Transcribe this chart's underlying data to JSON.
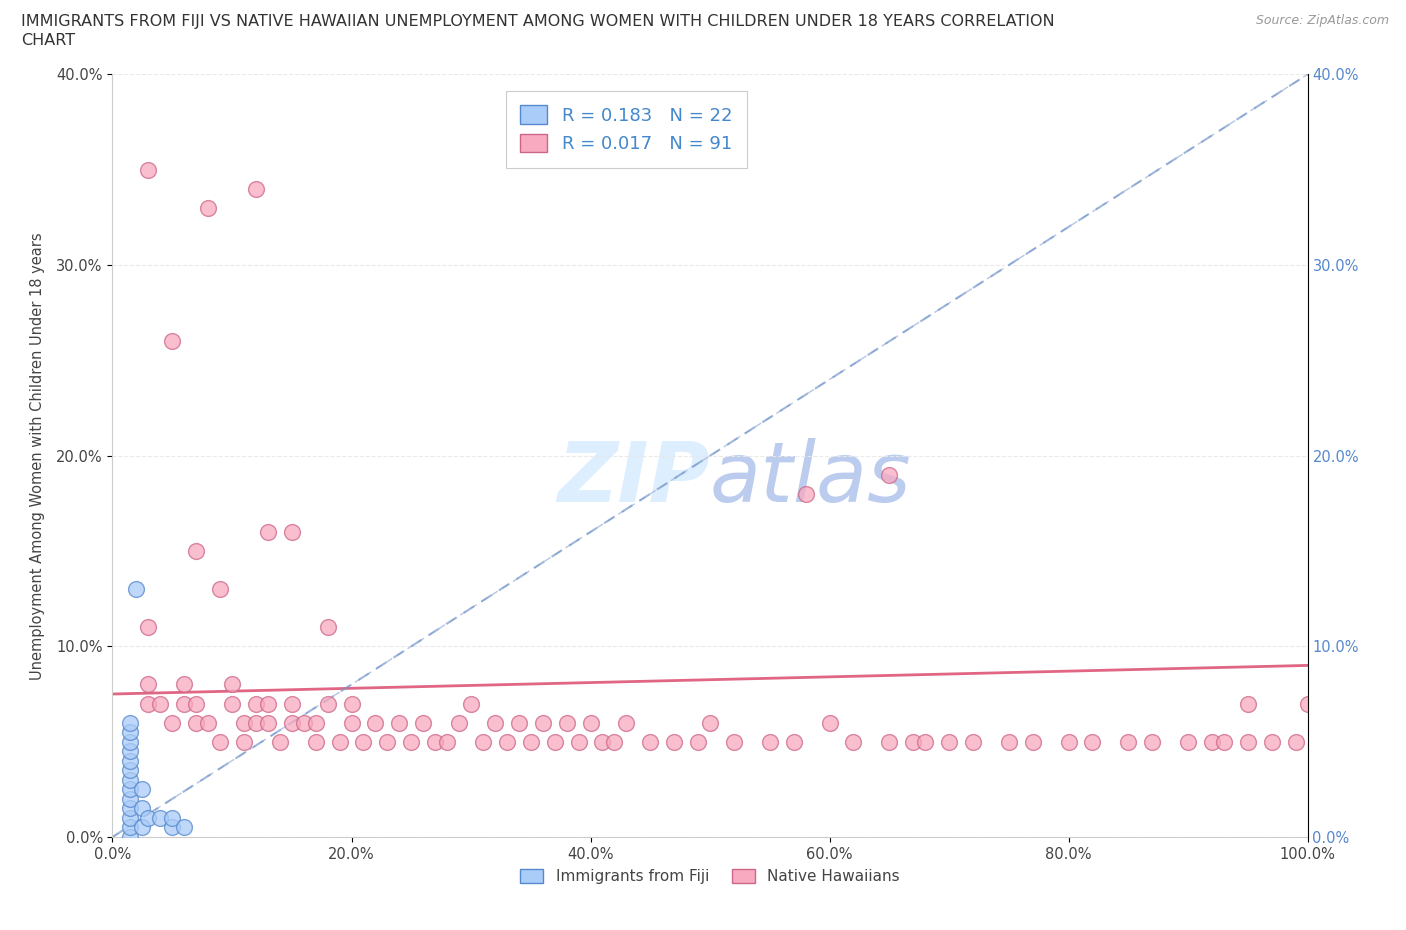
{
  "title_line1": "IMMIGRANTS FROM FIJI VS NATIVE HAWAIIAN UNEMPLOYMENT AMONG WOMEN WITH CHILDREN UNDER 18 YEARS CORRELATION",
  "title_line2": "CHART",
  "source": "Source: ZipAtlas.com",
  "ylabel_label": "Unemployment Among Women with Children Under 18 years",
  "fiji_R": 0.183,
  "fiji_N": 22,
  "native_R": 0.017,
  "native_N": 91,
  "fiji_color": "#aaccf8",
  "native_color": "#f8aac0",
  "fiji_edge_color": "#5588cc",
  "native_edge_color": "#cc6688",
  "trend_fiji_color": "#7799cc",
  "trend_native_color": "#dd5577",
  "diagonal_color": "#aabbdd",
  "watermark_color": "#ddeeff",
  "legend_fiji_label": "Immigrants from Fiji",
  "legend_native_label": "Native Hawaiians",
  "fiji_x": [
    1.5,
    1.5,
    1.5,
    1.5,
    1.5,
    1.5,
    1.5,
    1.5,
    1.5,
    1.5,
    1.5,
    1.5,
    1.5,
    2.5,
    2.5,
    2.5,
    3.0,
    4.0,
    5.0,
    5.0,
    6.0,
    2.0
  ],
  "fiji_y": [
    0.0,
    0.5,
    1.0,
    1.5,
    2.0,
    2.5,
    3.0,
    3.5,
    4.0,
    4.5,
    5.0,
    5.5,
    6.0,
    0.5,
    1.5,
    2.5,
    1.0,
    1.0,
    0.5,
    1.0,
    0.5,
    13.0
  ],
  "native_x": [
    3,
    3,
    4,
    5,
    6,
    6,
    7,
    7,
    8,
    9,
    10,
    10,
    11,
    11,
    12,
    12,
    13,
    13,
    14,
    15,
    15,
    16,
    17,
    17,
    18,
    19,
    20,
    20,
    21,
    22,
    23,
    24,
    25,
    26,
    27,
    28,
    29,
    30,
    31,
    32,
    33,
    34,
    35,
    36,
    37,
    38,
    39,
    40,
    41,
    42,
    43,
    45,
    47,
    49,
    50,
    52,
    55,
    57,
    60,
    62,
    65,
    67,
    68,
    70,
    72,
    75,
    77,
    80,
    82,
    85,
    87,
    90,
    92,
    93,
    95,
    97,
    99,
    100,
    3,
    12,
    5,
    8,
    58,
    65,
    3,
    7,
    9,
    13,
    18,
    15,
    95
  ],
  "native_y": [
    7,
    8,
    7,
    6,
    7,
    8,
    6,
    7,
    6,
    5,
    7,
    8,
    5,
    6,
    6,
    7,
    6,
    7,
    5,
    7,
    6,
    6,
    5,
    6,
    7,
    5,
    6,
    7,
    5,
    6,
    5,
    6,
    5,
    6,
    5,
    5,
    6,
    7,
    5,
    6,
    5,
    6,
    5,
    6,
    5,
    6,
    5,
    6,
    5,
    5,
    6,
    5,
    5,
    5,
    6,
    5,
    5,
    5,
    6,
    5,
    5,
    5,
    5,
    5,
    5,
    5,
    5,
    5,
    5,
    5,
    5,
    5,
    5,
    5,
    5,
    5,
    5,
    7,
    35,
    34,
    26,
    33,
    18,
    19,
    11,
    15,
    13,
    16,
    11,
    16,
    7
  ],
  "xlim": [
    0,
    100
  ],
  "ylim": [
    0,
    40
  ],
  "x_tick_vals": [
    0,
    20,
    40,
    60,
    80,
    100
  ],
  "y_tick_vals": [
    0,
    10,
    20,
    30,
    40
  ],
  "background_color": "#ffffff",
  "grid_color": "#e8e8e8"
}
